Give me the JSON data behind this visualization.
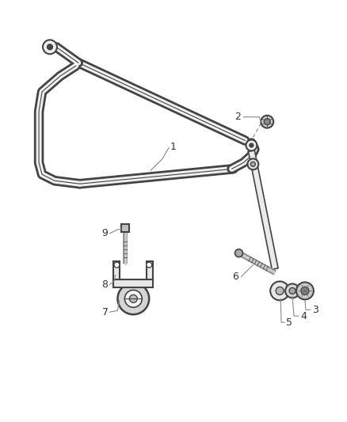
{
  "bg_color": "#ffffff",
  "line_color": "#444444",
  "fig_width": 4.38,
  "fig_height": 5.33,
  "dpi": 100,
  "bar_lw_outer": 9,
  "bar_lw_inner": 5,
  "bar_fill": "#f0f0f0",
  "bar_stroke": "#555555",
  "label_fontsize": 9,
  "label_color": "#333333"
}
